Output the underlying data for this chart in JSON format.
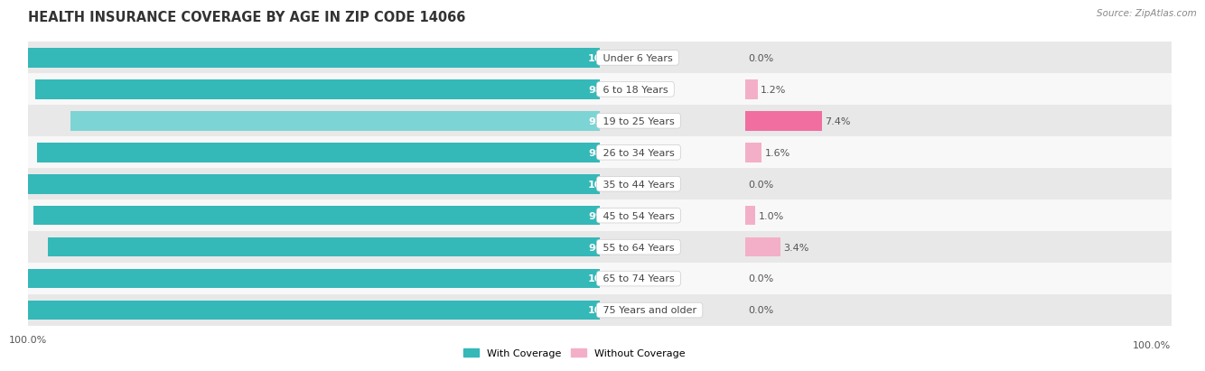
{
  "title": "HEALTH INSURANCE COVERAGE BY AGE IN ZIP CODE 14066",
  "source": "Source: ZipAtlas.com",
  "categories": [
    "Under 6 Years",
    "6 to 18 Years",
    "19 to 25 Years",
    "26 to 34 Years",
    "35 to 44 Years",
    "45 to 54 Years",
    "55 to 64 Years",
    "65 to 74 Years",
    "75 Years and older"
  ],
  "with_coverage": [
    100.0,
    98.8,
    92.6,
    98.4,
    100.0,
    99.0,
    96.6,
    100.0,
    100.0
  ],
  "without_coverage": [
    0.0,
    1.2,
    7.4,
    1.6,
    0.0,
    1.0,
    3.4,
    0.0,
    0.0
  ],
  "color_with": "#35b8b8",
  "color_with_light": "#7dd4d4",
  "color_without": "#f06fa0",
  "color_without_light": "#f4afc8",
  "row_colors": [
    "#e8e8e8",
    "#f8f8f8"
  ],
  "title_fontsize": 10.5,
  "label_fontsize": 8,
  "tick_fontsize": 8,
  "value_fontsize": 8,
  "bar_height": 0.62,
  "legend_label_with": "With Coverage",
  "legend_label_without": "Without Coverage"
}
